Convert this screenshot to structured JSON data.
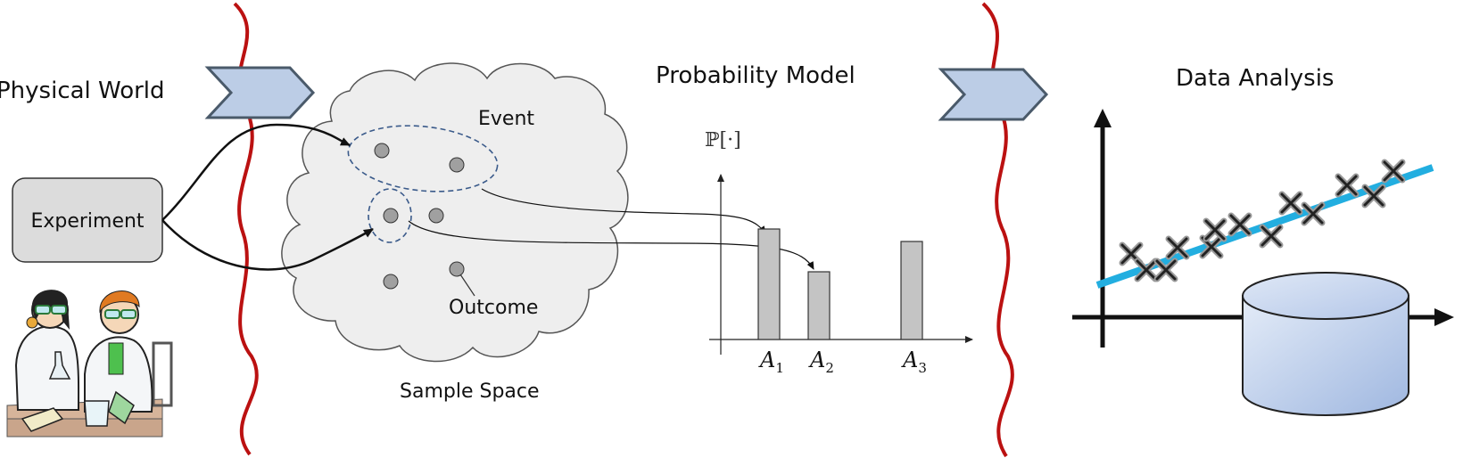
{
  "sections": {
    "physical_world": "Physical World",
    "probability_model": "Probability Model",
    "data_analysis": "Data Analysis"
  },
  "experiment_box": "Experiment",
  "cloud": {
    "event_label": "Event",
    "outcome_label": "Outcome",
    "sample_space_label": "Sample Space"
  },
  "bar_chart": {
    "y_label": "ℙ[·]",
    "categories": [
      {
        "symbol": "A",
        "sub": "1"
      },
      {
        "symbol": "A",
        "sub": "2"
      },
      {
        "symbol": "A",
        "sub": "3"
      }
    ],
    "values": [
      0.62,
      0.38,
      0.55
    ]
  },
  "colors": {
    "boundary": "#bb1111",
    "chevron_fill": "#bccde6",
    "chevron_stroke": "#4a5a6a",
    "event_dash": "#3a5a8a",
    "bar_fill": "#c4c4c4",
    "regression_line": "#22aee0",
    "database_fill": "#c4d4ee"
  },
  "icons": [
    "scientists-illustration",
    "database-icon",
    "cloud-shape",
    "chevron-arrow"
  ]
}
